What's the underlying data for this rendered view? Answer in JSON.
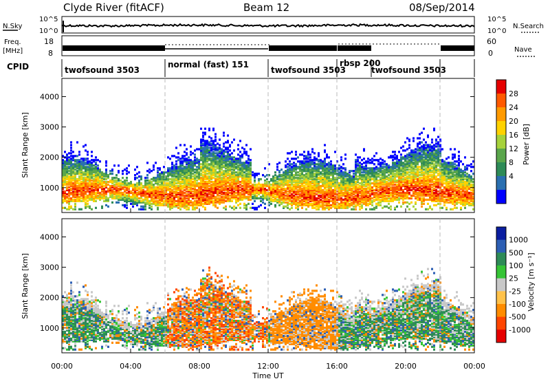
{
  "header": {
    "station": "Clyde River (fitACF)",
    "beam": "Beam 12",
    "date": "08/Sep/2014"
  },
  "noise_panel": {
    "left_label": "N.Sky",
    "right_label": "N.Search",
    "left_ticks": [
      "10^5",
      "10^0"
    ],
    "right_ticks": [
      "10^5",
      "10^0"
    ]
  },
  "freq_panel": {
    "left_label_1": "Freq.",
    "left_label_2": "[MHz]",
    "right_label": "Nave",
    "left_ticks": [
      "18",
      "8"
    ],
    "right_ticks": [
      "60",
      "0"
    ]
  },
  "cpid": {
    "label": "CPID",
    "segments": [
      {
        "start_h": 0,
        "end_h": 6,
        "label": "twofsound 3503"
      },
      {
        "start_h": 6,
        "end_h": 12,
        "label": "normal (fast) 151"
      },
      {
        "start_h": 12,
        "end_h": 16,
        "label": "twofsound 3503"
      },
      {
        "start_h": 16,
        "end_h": 18,
        "label": "rbsp 200"
      },
      {
        "start_h": 18,
        "end_h": 22,
        "label": "twofsound 3503"
      }
    ]
  },
  "chart_data": [
    {
      "type": "heatmap",
      "name": "power",
      "ylabel": "Slant Range [km]",
      "ylim": [
        180,
        4600
      ],
      "yticks": [
        1000,
        2000,
        3000,
        4000
      ],
      "colorbar_label": "Power [dB]",
      "colorbar_ticks": [
        "28",
        "24",
        "20",
        "16",
        "12",
        "8",
        "4"
      ],
      "colorbar_colors": [
        "#e60000",
        "#ff5a00",
        "#ff9a00",
        "#ffd200",
        "#a6d23c",
        "#5aa64b",
        "#2e8b57",
        "#2a6fb0",
        "#0000ff"
      ]
    },
    {
      "type": "heatmap",
      "name": "velocity",
      "ylabel": "Slant Range [km]",
      "ylim": [
        180,
        4600
      ],
      "yticks": [
        1000,
        2000,
        3000,
        4000
      ],
      "colorbar_label": "Velocity [m s⁻¹]",
      "colorbar_ticks": [
        "1000",
        "500",
        "100",
        "25",
        "-25",
        "-100",
        "-500",
        "-1000"
      ],
      "colorbar_colors": [
        "#0a1ea0",
        "#2d5fb4",
        "#2e8b57",
        "#36c436",
        "#c8c8c8",
        "#ffc24a",
        "#ff8c00",
        "#ff4500",
        "#e60000"
      ]
    }
  ],
  "x_axis": {
    "label": "Time UT",
    "ticks": [
      "00:00",
      "04:00",
      "08:00",
      "12:00",
      "16:00",
      "20:00",
      "00:00"
    ],
    "xlim_hours": [
      0,
      24
    ]
  },
  "mode_boundaries_h": [
    6,
    12,
    16,
    22
  ]
}
